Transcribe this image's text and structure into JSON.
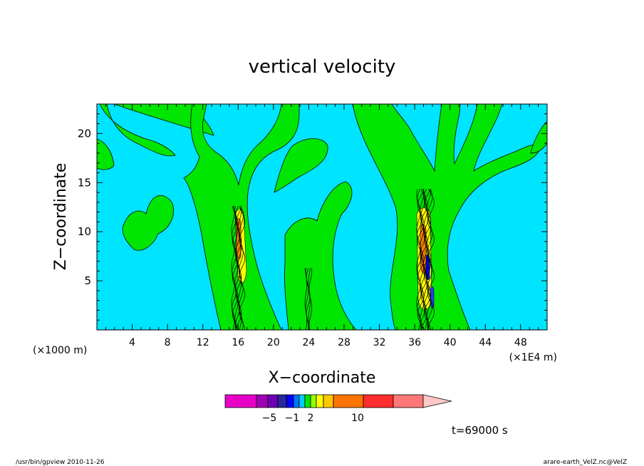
{
  "chart_data": {
    "type": "heatmap",
    "title": "vertical velocity",
    "xlabel": "X−coordinate",
    "ylabel": "Z−coordinate",
    "xlim": [
      0,
      51
    ],
    "ylim": [
      0,
      23
    ],
    "x_ticks": [
      4,
      8,
      12,
      16,
      20,
      24,
      28,
      32,
      36,
      40,
      44,
      48
    ],
    "y_ticks": [
      5,
      10,
      15,
      20
    ],
    "x_unit_left": "(×1000 m)",
    "x_unit_right": "(×1E4 m)",
    "background_color": "#00e5ff",
    "contour_regions": [
      {
        "level": "positive",
        "color": "#00e600",
        "x": [
          0,
          2
        ],
        "y": [
          16.5,
          23
        ]
      },
      {
        "level": "positive",
        "color": "#00e600",
        "x": [
          0.5,
          13
        ],
        "y": [
          7.5,
          17
        ]
      },
      {
        "level": "positive",
        "color": "#00e600",
        "x": [
          3,
          13
        ],
        "y": [
          17,
          23
        ]
      },
      {
        "level": "positive",
        "color": "#00e600",
        "x": [
          4.5,
          8.5
        ],
        "y": [
          10,
          14
        ]
      },
      {
        "level": "positive",
        "color": "#00e600",
        "x": [
          12,
          21.5
        ],
        "y": [
          0,
          23
        ]
      },
      {
        "level": "positive",
        "color": "#00e600",
        "x": [
          20,
          28
        ],
        "y": [
          0,
          16
        ]
      },
      {
        "level": "positive",
        "color": "#00e600",
        "x": [
          29,
          51
        ],
        "y": [
          0,
          23
        ]
      },
      {
        "level": "strong",
        "color": "#ffff00",
        "x": [
          15.5,
          16.5
        ],
        "y": [
          6,
          12
        ]
      },
      {
        "level": "strong",
        "color": "#ff8000",
        "x": [
          15.6,
          16.2
        ],
        "y": [
          8,
          11
        ]
      },
      {
        "level": "strong",
        "color": "#ffff00",
        "x": [
          36.3,
          37.6
        ],
        "y": [
          3,
          12
        ]
      },
      {
        "level": "strong",
        "color": "#ff8000",
        "x": [
          36.6,
          37.2
        ],
        "y": [
          6,
          10
        ]
      },
      {
        "level": "negative",
        "color": "#0000ff",
        "x": [
          37.7,
          38.0
        ],
        "y": [
          3,
          7
        ]
      }
    ],
    "colorbar": {
      "colors": [
        "#e600c8",
        "#a000b4",
        "#6e00b4",
        "#28289b",
        "#0000ff",
        "#0073ff",
        "#00cdff",
        "#00e600",
        "#96ff00",
        "#ffff00",
        "#ffc800",
        "#ff7300",
        "#ff2d2d",
        "#ff7878",
        "#ffc8c8"
      ],
      "labels": [
        "−5",
        "−1",
        "2",
        "10"
      ]
    },
    "time_label": "t=69000 s"
  },
  "footer": {
    "left": "/usr/bin/gpview   2010-11-26",
    "right": "arare-earth_VelZ.nc@VelZ"
  }
}
